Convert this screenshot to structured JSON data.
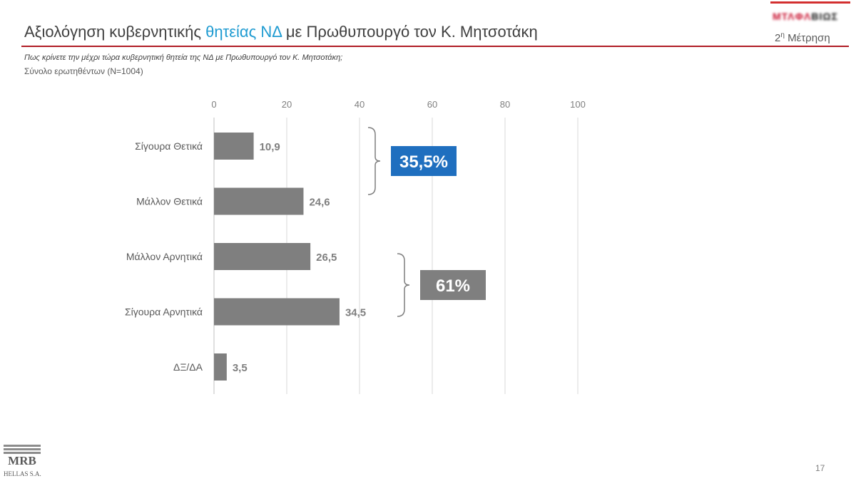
{
  "header": {
    "title_part1": "Αξιολόγηση κυβερνητικής ",
    "title_highlight": "θητείας ΝΔ",
    "title_part2": " με Πρωθυπουργό τον Κ. Μητσοτάκη",
    "highlight_color": "#1f9bd1",
    "rule_color": "#b01c24",
    "measurement_number": "2",
    "measurement_sup": "η",
    "measurement_label": " Μέτρηση"
  },
  "question": "Πως κρίνετε την μέχρι τώρα κυβερνητική θητεία της ΝΔ με Πρωθυπουργό τον Κ. Μητσοτάκη;",
  "sample": "Σύνολο ερωτηθέντων (N=1004)",
  "chart_data": {
    "type": "bar",
    "orientation": "horizontal",
    "categories": [
      "Σίγουρα Θετικά",
      "Μάλλον Θετικά",
      "Μάλλον Αρνητικά",
      "Σίγουρα Αρνητικά",
      "ΔΞ/ΔΑ"
    ],
    "values": [
      10.9,
      24.6,
      26.5,
      34.5,
      3.5
    ],
    "value_labels": [
      "10,9",
      "24,6",
      "26,5",
      "34,5",
      "3,5"
    ],
    "xlim": [
      0,
      100
    ],
    "xticks": [
      "0",
      "20",
      "40",
      "60",
      "80",
      "100"
    ],
    "tick_values": [
      0,
      20,
      40,
      60,
      80,
      100
    ],
    "axis_position": "top",
    "grid": true,
    "bar_color": "#7f7f7f",
    "groups": [
      {
        "label": "35,5%",
        "categories": [
          0,
          1
        ],
        "color": "#1f6fbf"
      },
      {
        "label": "61%",
        "categories": [
          2,
          3
        ],
        "color": "#7f7f7f"
      }
    ]
  },
  "footer": {
    "logo_text": "MRB",
    "logo_subtext": "HELLAS S.A.",
    "page_number": "17"
  }
}
